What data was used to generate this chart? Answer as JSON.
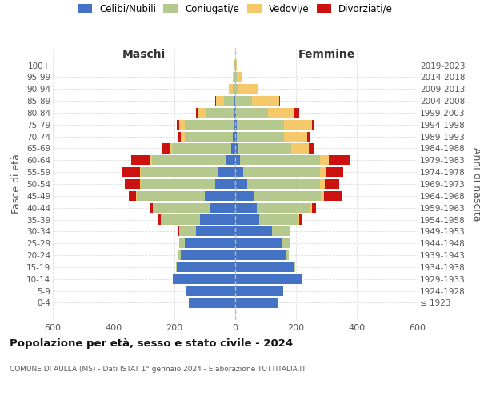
{
  "age_groups": [
    "100+",
    "95-99",
    "90-94",
    "85-89",
    "80-84",
    "75-79",
    "70-74",
    "65-69",
    "60-64",
    "55-59",
    "50-54",
    "45-49",
    "40-44",
    "35-39",
    "30-34",
    "25-29",
    "20-24",
    "15-19",
    "10-14",
    "5-9",
    "0-4"
  ],
  "birth_years": [
    "≤ 1923",
    "1924-1928",
    "1929-1933",
    "1934-1938",
    "1939-1943",
    "1944-1948",
    "1949-1953",
    "1954-1958",
    "1959-1963",
    "1964-1968",
    "1969-1973",
    "1974-1978",
    "1979-1983",
    "1984-1988",
    "1989-1993",
    "1994-1998",
    "1999-2003",
    "2004-2008",
    "2009-2013",
    "2014-2018",
    "2019-2023"
  ],
  "colors": {
    "celibi": "#4472c4",
    "coniugati": "#b5c98e",
    "vedovi": "#f5c96a",
    "divorziati": "#cc1111"
  },
  "males": {
    "celibi": [
      1,
      1,
      1,
      2,
      3,
      5,
      8,
      12,
      30,
      55,
      65,
      100,
      85,
      115,
      130,
      165,
      178,
      192,
      205,
      160,
      152
    ],
    "coniugati": [
      2,
      3,
      8,
      35,
      95,
      160,
      158,
      195,
      245,
      255,
      245,
      225,
      185,
      130,
      55,
      20,
      8,
      3,
      0,
      0,
      0
    ],
    "vedovi": [
      1,
      4,
      12,
      25,
      22,
      18,
      14,
      8,
      5,
      2,
      2,
      2,
      0,
      0,
      0,
      0,
      0,
      0,
      0,
      0,
      0
    ],
    "divorziati": [
      0,
      0,
      0,
      3,
      10,
      8,
      10,
      28,
      62,
      58,
      52,
      22,
      12,
      8,
      4,
      0,
      0,
      0,
      0,
      0,
      0
    ]
  },
  "females": {
    "nubili": [
      0,
      0,
      1,
      1,
      2,
      5,
      5,
      10,
      15,
      25,
      40,
      60,
      70,
      80,
      120,
      155,
      165,
      195,
      220,
      158,
      142
    ],
    "coniugate": [
      2,
      5,
      10,
      55,
      105,
      155,
      155,
      175,
      265,
      255,
      240,
      222,
      178,
      128,
      58,
      25,
      12,
      3,
      0,
      0,
      0
    ],
    "vedove": [
      4,
      18,
      62,
      88,
      88,
      92,
      78,
      58,
      28,
      18,
      14,
      10,
      5,
      2,
      0,
      0,
      0,
      0,
      0,
      0,
      0
    ],
    "divorziate": [
      0,
      0,
      2,
      4,
      15,
      8,
      8,
      18,
      72,
      58,
      48,
      58,
      14,
      8,
      4,
      0,
      0,
      0,
      0,
      0,
      0
    ]
  },
  "xlim": 600,
  "title": "Popolazione per età, sesso e stato civile - 2024",
  "subtitle": "COMUNE DI AULLA (MS) - Dati ISTAT 1° gennaio 2024 - Elaborazione TUTTITALIA.IT",
  "ylabel_left": "Fasce di età",
  "ylabel_right": "Anni di nascita",
  "xlabel_left": "Maschi",
  "xlabel_right": "Femmine",
  "legend_labels": [
    "Celibi/Nubili",
    "Coniugati/e",
    "Vedovi/e",
    "Divorziati/e"
  ],
  "bg_color": "#ffffff",
  "bar_height": 0.82
}
